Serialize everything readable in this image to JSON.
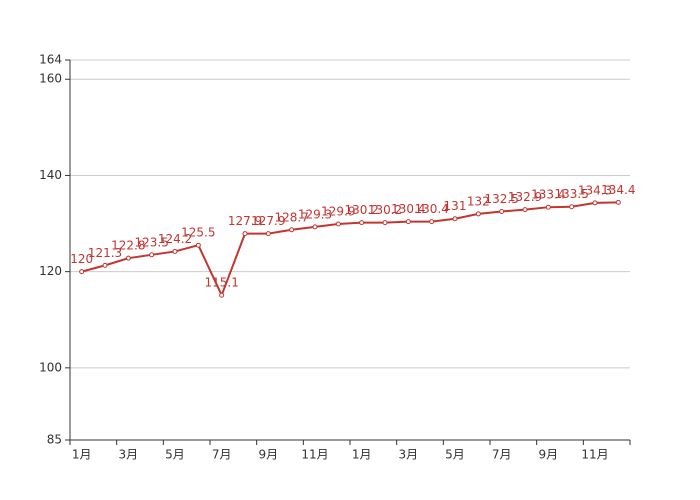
{
  "chart_data": {
    "type": "line",
    "categories": [
      "1月",
      null,
      "3月",
      null,
      "5月",
      null,
      "7月",
      null,
      "9月",
      null,
      "11月",
      null,
      "1月",
      null,
      "3月",
      null,
      "5月",
      null,
      "7月",
      null,
      "9月",
      null,
      "11月",
      null
    ],
    "series": [
      {
        "color": "#c23531",
        "values": [
          120,
          121.3,
          122.8,
          123.5,
          124.2,
          125.5,
          115.1,
          127.9,
          127.9,
          128.7,
          129.3,
          129.9,
          130.2,
          130.2,
          130.4,
          130.4,
          131,
          132,
          132.5,
          132.9,
          133.4,
          133.5,
          134.3,
          134.4
        ]
      }
    ],
    "ylim": [
      85,
      164
    ],
    "yticks": [
      85,
      100,
      120,
      140,
      160,
      164
    ],
    "grid": true
  }
}
